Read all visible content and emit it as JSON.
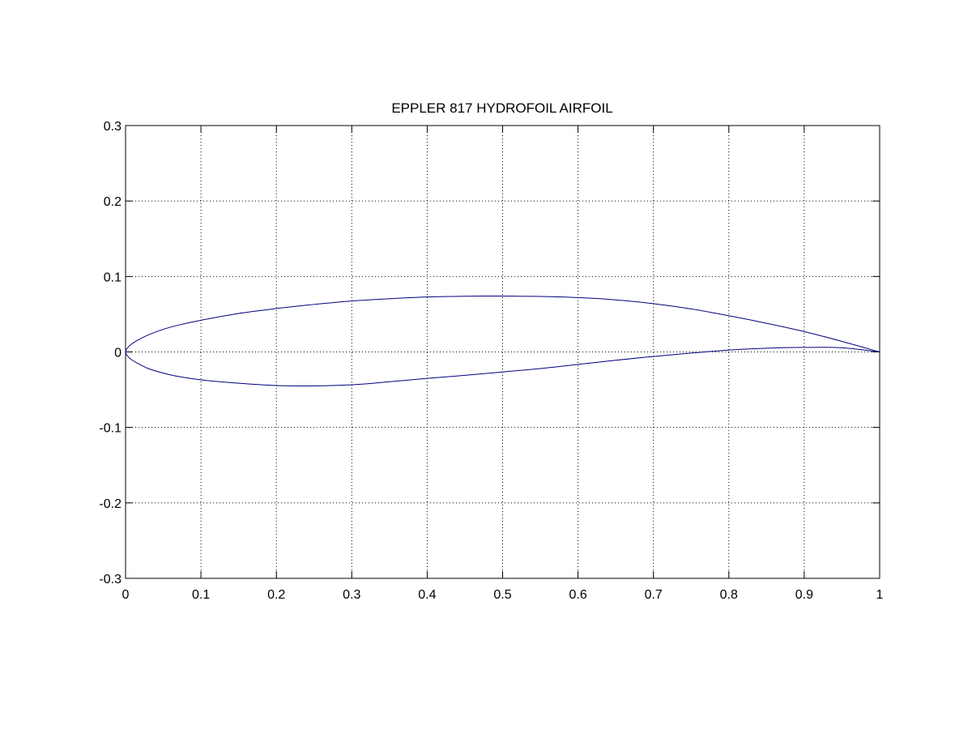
{
  "chart_data": {
    "type": "line",
    "title": "EPPLER 817 HYDROFOIL AIRFOIL",
    "xlabel": "",
    "ylabel": "",
    "xlim": [
      0,
      1
    ],
    "ylim": [
      -0.3,
      0.3
    ],
    "grid": true,
    "x_ticks": [
      0,
      0.1,
      0.2,
      0.3,
      0.4,
      0.5,
      0.6,
      0.7,
      0.8,
      0.9,
      1
    ],
    "x_tick_labels": [
      "0",
      "0.1",
      "0.2",
      "0.3",
      "0.4",
      "0.5",
      "0.6",
      "0.7",
      "0.8",
      "0.9",
      "1"
    ],
    "y_ticks": [
      -0.3,
      -0.2,
      -0.1,
      0,
      0.1,
      0.2,
      0.3
    ],
    "y_tick_labels": [
      "-0.3",
      "-0.2",
      "-0.1",
      "0",
      "0.1",
      "0.2",
      "0.3"
    ],
    "line_color": "#000080",
    "series": [
      {
        "x": [
          1.0,
          0.95,
          0.9,
          0.85,
          0.8,
          0.75,
          0.7,
          0.65,
          0.6,
          0.55,
          0.5,
          0.45,
          0.4,
          0.35,
          0.3,
          0.25,
          0.2,
          0.15,
          0.1,
          0.07,
          0.05,
          0.03,
          0.015,
          0.005,
          0.0,
          0.005,
          0.015,
          0.03,
          0.05,
          0.07,
          0.1,
          0.15,
          0.2,
          0.25,
          0.3,
          0.35,
          0.4,
          0.45,
          0.5,
          0.55,
          0.6,
          0.65,
          0.7,
          0.75,
          0.8,
          0.85,
          0.9,
          0.95,
          1.0
        ],
        "y": [
          0.0,
          0.014,
          0.027,
          0.038,
          0.048,
          0.057,
          0.064,
          0.069,
          0.072,
          0.0735,
          0.074,
          0.0738,
          0.0728,
          0.0705,
          0.0675,
          0.063,
          0.0575,
          0.051,
          0.042,
          0.0355,
          0.03,
          0.0225,
          0.015,
          0.008,
          0.0,
          -0.008,
          -0.0145,
          -0.022,
          -0.028,
          -0.0325,
          -0.037,
          -0.0415,
          -0.0445,
          -0.045,
          -0.0435,
          -0.0395,
          -0.035,
          -0.031,
          -0.0265,
          -0.022,
          -0.0165,
          -0.011,
          -0.006,
          -0.0015,
          0.0025,
          0.005,
          0.006,
          0.0055,
          0.0
        ]
      }
    ]
  }
}
